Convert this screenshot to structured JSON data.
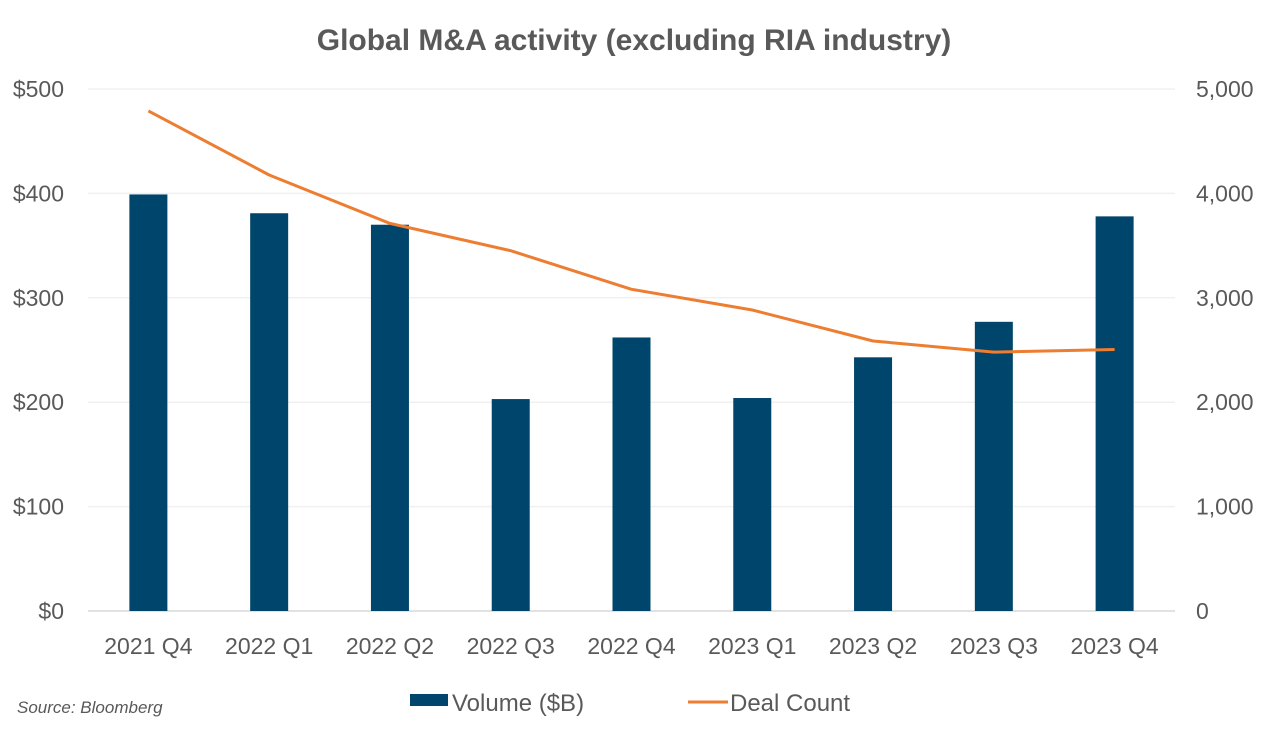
{
  "chart_data": {
    "type": "bar",
    "title": "Global M&A activity (excluding RIA industry)",
    "xlabel": "",
    "ylabel": "",
    "categories": [
      "2021 Q4",
      "2022 Q1",
      "2022 Q2",
      "2022 Q3",
      "2022 Q4",
      "2023 Q1",
      "2023 Q2",
      "2023 Q3",
      "2023 Q4"
    ],
    "series": [
      {
        "name": "Volume ($B)",
        "type": "bar",
        "axis": "left",
        "color": "#00456B",
        "values": [
          399,
          381,
          370,
          203,
          262,
          204,
          243,
          277,
          378
        ]
      },
      {
        "name": "Deal Count",
        "type": "line",
        "axis": "right",
        "color": "#ED7D31",
        "values": [
          4790,
          4176,
          3713,
          3451,
          3081,
          2883,
          2586,
          2480,
          2505
        ]
      }
    ],
    "y_left": {
      "range": [
        0,
        500
      ],
      "ticks": [
        0,
        100,
        200,
        300,
        400,
        500
      ],
      "tick_labels": [
        "$0",
        "$100",
        "$200",
        "$300",
        "$400",
        "$500"
      ]
    },
    "y_right": {
      "range": [
        0,
        5000
      ],
      "ticks": [
        0,
        1000,
        2000,
        3000,
        4000,
        5000
      ],
      "tick_labels": [
        "0",
        "1,000",
        "2,000",
        "3,000",
        "4,000",
        "5,000"
      ]
    },
    "grid": true,
    "legend": {
      "placement": "bottom-center",
      "entries": [
        "Volume ($B)",
        "Deal Count"
      ]
    },
    "annotations": [
      "Source: Bloomberg"
    ]
  },
  "footer": {
    "source": "Source: Bloomberg"
  },
  "colors": {
    "grid": "#F0F0F0",
    "axis_line": "#D9D9D9",
    "text": "#595959"
  }
}
